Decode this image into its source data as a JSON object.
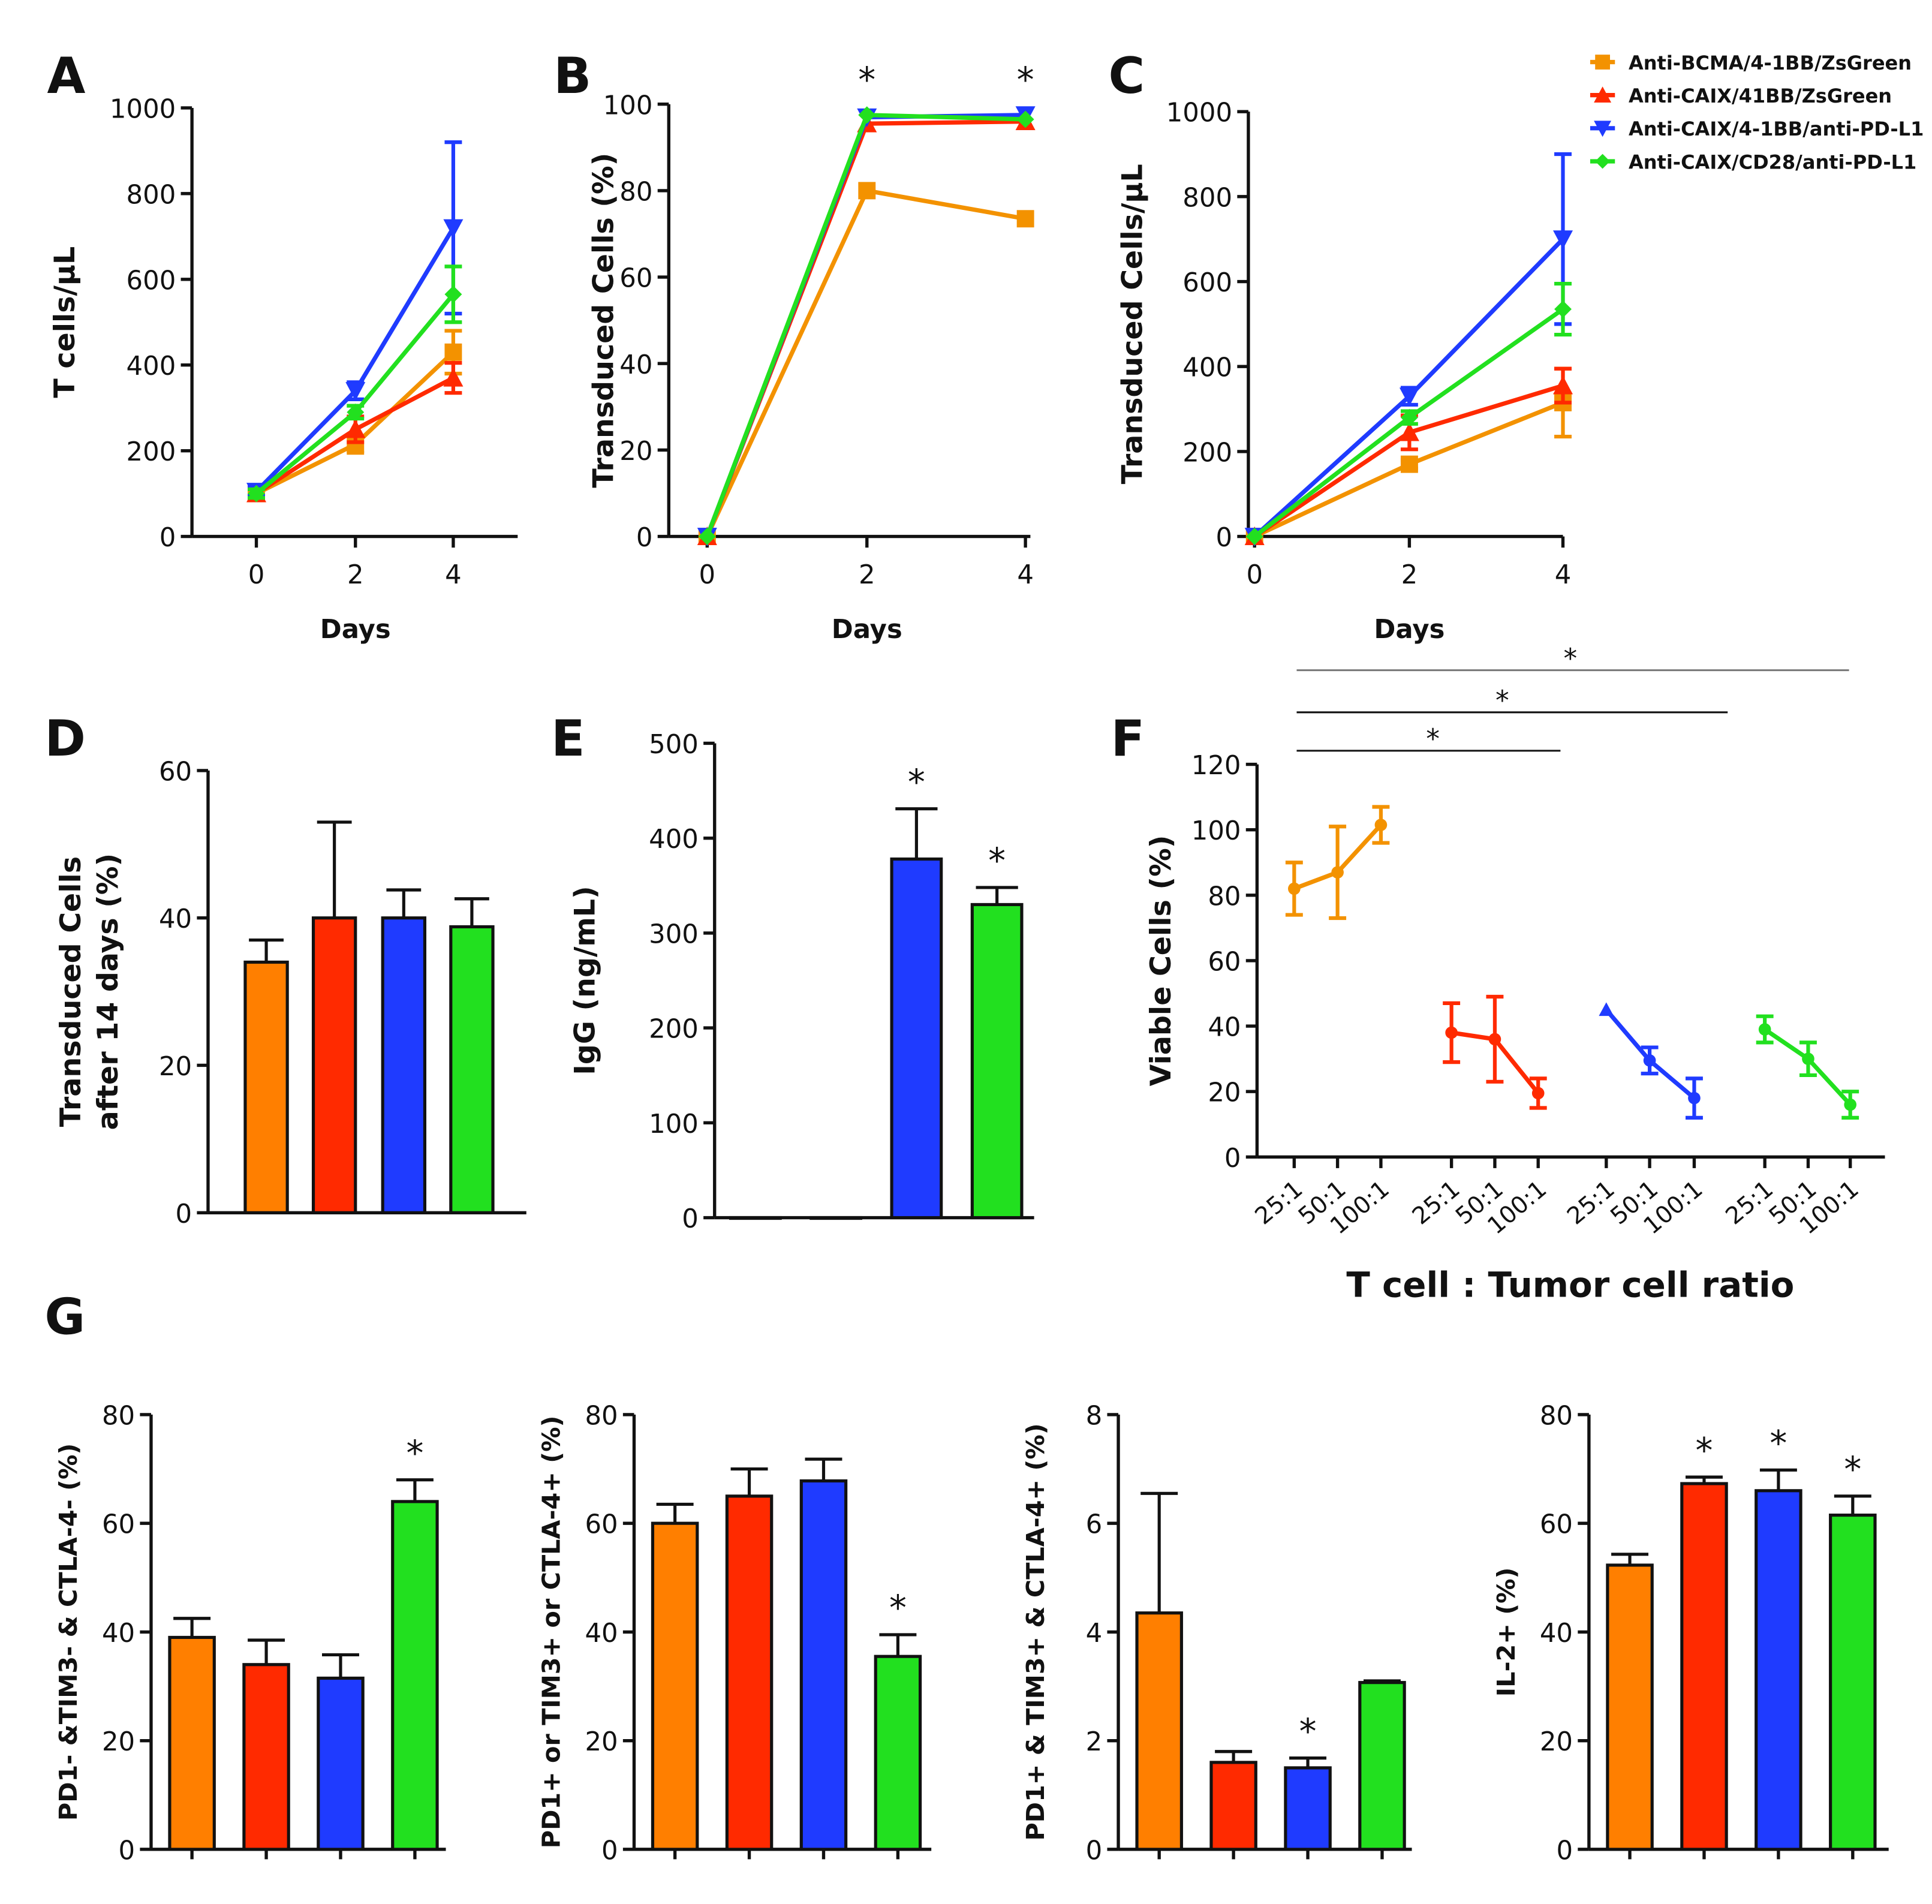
{
  "colors": {
    "orange": "#F39200",
    "red": "#FF2A00",
    "blue": "#1F3BFF",
    "green": "#22E01F",
    "bar_orange": "#FF7F00"
  },
  "legend": [
    {
      "label": "Anti-BCMA/4-1BB/ZsGreen",
      "color": "orange",
      "marker": "square"
    },
    {
      "label": "Anti-CAIX/41BB/ZsGreen",
      "color": "red",
      "marker": "triangle-up"
    },
    {
      "label": "Anti-CAIX/4-1BB/anti-PD-L1",
      "color": "blue",
      "marker": "triangle-down"
    },
    {
      "label": "Anti-CAIX/CD28/anti-PD-L1",
      "color": "green",
      "marker": "diamond"
    }
  ],
  "chart_data": [
    {
      "panel": "A",
      "type": "line",
      "xlabel": "Days",
      "ylabel": "T cells/µL",
      "x": [
        0,
        2,
        4
      ],
      "xticks": [
        "0",
        "2",
        "4"
      ],
      "ylim": [
        0,
        1000
      ],
      "yticks": [
        "0",
        "200",
        "400",
        "600",
        "800",
        "1000"
      ],
      "series": [
        {
          "name": "Anti-BCMA/4-1BB/ZsGreen",
          "color": "orange",
          "values": [
            100,
            215,
            430
          ],
          "err": [
            10,
            20,
            50
          ]
        },
        {
          "name": "Anti-CAIX/41BB/ZsGreen",
          "color": "red",
          "values": [
            100,
            250,
            370
          ],
          "err": [
            10,
            30,
            35
          ]
        },
        {
          "name": "Anti-CAIX/4-1BB/anti-PD-L1",
          "color": "blue",
          "values": [
            105,
            340,
            720
          ],
          "err": [
            10,
            20,
            200
          ]
        },
        {
          "name": "Anti-CAIX/CD28/anti-PD-L1",
          "color": "green",
          "values": [
            100,
            290,
            565
          ],
          "err": [
            10,
            15,
            65
          ]
        }
      ],
      "stars": []
    },
    {
      "panel": "B",
      "type": "line",
      "xlabel": "Days",
      "ylabel": "Transduced Cells (%)",
      "x": [
        0,
        2,
        4
      ],
      "xticks": [
        "0",
        "2",
        "4"
      ],
      "ylim": [
        0,
        100
      ],
      "yticks": [
        "0",
        "20",
        "40",
        "60",
        "80",
        "100"
      ],
      "series": [
        {
          "name": "Anti-BCMA/4-1BB/ZsGreen",
          "color": "orange",
          "values": [
            0,
            80,
            73.5
          ],
          "err": [
            0,
            0,
            0
          ]
        },
        {
          "name": "Anti-CAIX/41BB/ZsGreen",
          "color": "red",
          "values": [
            0,
            95.5,
            96
          ],
          "err": [
            0,
            0,
            0
          ]
        },
        {
          "name": "Anti-CAIX/4-1BB/anti-PD-L1",
          "color": "blue",
          "values": [
            0,
            97,
            97.5
          ],
          "err": [
            0,
            0,
            0
          ]
        },
        {
          "name": "Anti-CAIX/CD28/anti-PD-L1",
          "color": "green",
          "values": [
            0,
            97.5,
            96.5
          ],
          "err": [
            0,
            0,
            0
          ]
        }
      ],
      "stars": [
        "*",
        "*"
      ]
    },
    {
      "panel": "C",
      "type": "line",
      "xlabel": "Days",
      "ylabel": "Transduced Cells/µL",
      "x": [
        0,
        2,
        4
      ],
      "xticks": [
        "0",
        "2",
        "4"
      ],
      "ylim": [
        0,
        1000
      ],
      "yticks": [
        "0",
        "200",
        "400",
        "600",
        "800",
        "1000"
      ],
      "series": [
        {
          "name": "Anti-BCMA/4-1BB/ZsGreen",
          "color": "orange",
          "values": [
            0,
            170,
            315
          ],
          "err": [
            0,
            10,
            80
          ]
        },
        {
          "name": "Anti-CAIX/41BB/ZsGreen",
          "color": "red",
          "values": [
            0,
            245,
            355
          ],
          "err": [
            0,
            40,
            40
          ]
        },
        {
          "name": "Anti-CAIX/4-1BB/anti-PD-L1",
          "color": "blue",
          "values": [
            0,
            330,
            700
          ],
          "err": [
            0,
            20,
            200
          ]
        },
        {
          "name": "Anti-CAIX/CD28/anti-PD-L1",
          "color": "green",
          "values": [
            0,
            280,
            535
          ],
          "err": [
            0,
            15,
            60
          ]
        }
      ],
      "stars": []
    },
    {
      "panel": "D",
      "type": "bar",
      "ylabel": "Transduced Cells",
      "ylabel2": "after 14 days (%)",
      "ylim": [
        0,
        60
      ],
      "yticks": [
        "0",
        "20",
        "40",
        "60"
      ],
      "values": [
        34,
        40,
        40,
        38.8
      ],
      "err": [
        3,
        13,
        3.8,
        3.8
      ],
      "stars": [
        "",
        "",
        "",
        ""
      ]
    },
    {
      "panel": "E",
      "type": "bar",
      "ylabel": "IgG (ng/mL)",
      "ylim": [
        0,
        500
      ],
      "yticks": [
        "0",
        "100",
        "200",
        "300",
        "400",
        "500"
      ],
      "values": [
        0,
        0,
        378,
        330
      ],
      "err": [
        0,
        0,
        53,
        18
      ],
      "stars": [
        "",
        "",
        "*",
        "*"
      ]
    },
    {
      "panel": "F",
      "type": "line",
      "xlabel": "T cell : Tumor cell ratio",
      "ylabel": "Viable Cells (%)",
      "ylim": [
        0,
        120
      ],
      "yticks": [
        "0",
        "20",
        "40",
        "60",
        "80",
        "100",
        "120"
      ],
      "xticks": [
        "25:1",
        "50:1",
        "100:1"
      ],
      "series": [
        {
          "name": "Anti-BCMA/4-1BB/ZsGreen",
          "color": "orange",
          "values": [
            82,
            87,
            101.5
          ],
          "err": [
            8,
            14,
            5.5
          ]
        },
        {
          "name": "Anti-CAIX/41BB/ZsGreen",
          "color": "red",
          "values": [
            38,
            36,
            19.5
          ],
          "err": [
            9,
            13,
            4.5
          ]
        },
        {
          "name": "Anti-CAIX/4-1BB/anti-PD-L1",
          "color": "blue",
          "values": [
            45,
            29.5,
            18
          ],
          "err": [
            0,
            4,
            6
          ]
        },
        {
          "name": "Anti-CAIX/CD28/anti-PD-L1",
          "color": "green",
          "values": [
            39,
            30,
            16
          ],
          "err": [
            4,
            5,
            4
          ]
        }
      ],
      "significance": [
        {
          "label": "*",
          "from": "Anti-BCMA/4-1BB/ZsGreen",
          "to": "Anti-CAIX/41BB/ZsGreen"
        },
        {
          "label": "*",
          "from": "Anti-BCMA/4-1BB/ZsGreen",
          "to": "Anti-CAIX/4-1BB/anti-PD-L1"
        },
        {
          "label": "*",
          "from": "Anti-BCMA/4-1BB/ZsGreen",
          "to": "Anti-CAIX/CD28/anti-PD-L1"
        }
      ]
    },
    {
      "panel": "G",
      "type": "bar",
      "ylabel": "PD1- &TIM3- & CTLA-4- (%)",
      "ylim": [
        0,
        80
      ],
      "yticks": [
        "0",
        "20",
        "40",
        "60",
        "80"
      ],
      "values": [
        39,
        34,
        31.5,
        64
      ],
      "err": [
        3.5,
        4.5,
        4.3,
        4
      ],
      "stars": [
        "",
        "",
        "",
        "*"
      ]
    },
    {
      "panel": "G2",
      "type": "bar",
      "ylabel": "PD1+ or TIM3+ or CTLA-4+ (%)",
      "ylim": [
        0,
        80
      ],
      "yticks": [
        "0",
        "20",
        "40",
        "60",
        "80"
      ],
      "values": [
        60,
        65,
        67.8,
        35.5
      ],
      "err": [
        3.5,
        5,
        4,
        4
      ],
      "stars": [
        "",
        "",
        "",
        "*"
      ]
    },
    {
      "panel": "G3",
      "type": "bar",
      "ylabel": "PD1+ & TIM3+ & CTLA-4+ (%)",
      "ylim": [
        0,
        8
      ],
      "yticks": [
        "0",
        "2",
        "4",
        "6",
        "8"
      ],
      "values": [
        4.35,
        1.6,
        1.5,
        3.07
      ],
      "err": [
        2.2,
        0.2,
        0.18,
        0.03
      ],
      "stars": [
        "",
        "",
        "*",
        ""
      ]
    },
    {
      "panel": "G4",
      "type": "bar",
      "ylabel": "IL-2+ (%)",
      "ylim": [
        0,
        80
      ],
      "yticks": [
        "0",
        "20",
        "40",
        "60",
        "80"
      ],
      "values": [
        52.3,
        67.3,
        66,
        61.5
      ],
      "err": [
        2,
        1.2,
        3.8,
        3.5
      ],
      "stars": [
        "",
        "*",
        "*",
        "*"
      ]
    }
  ],
  "panel_labels": [
    "A",
    "B",
    "C",
    "D",
    "E",
    "F",
    "G"
  ]
}
